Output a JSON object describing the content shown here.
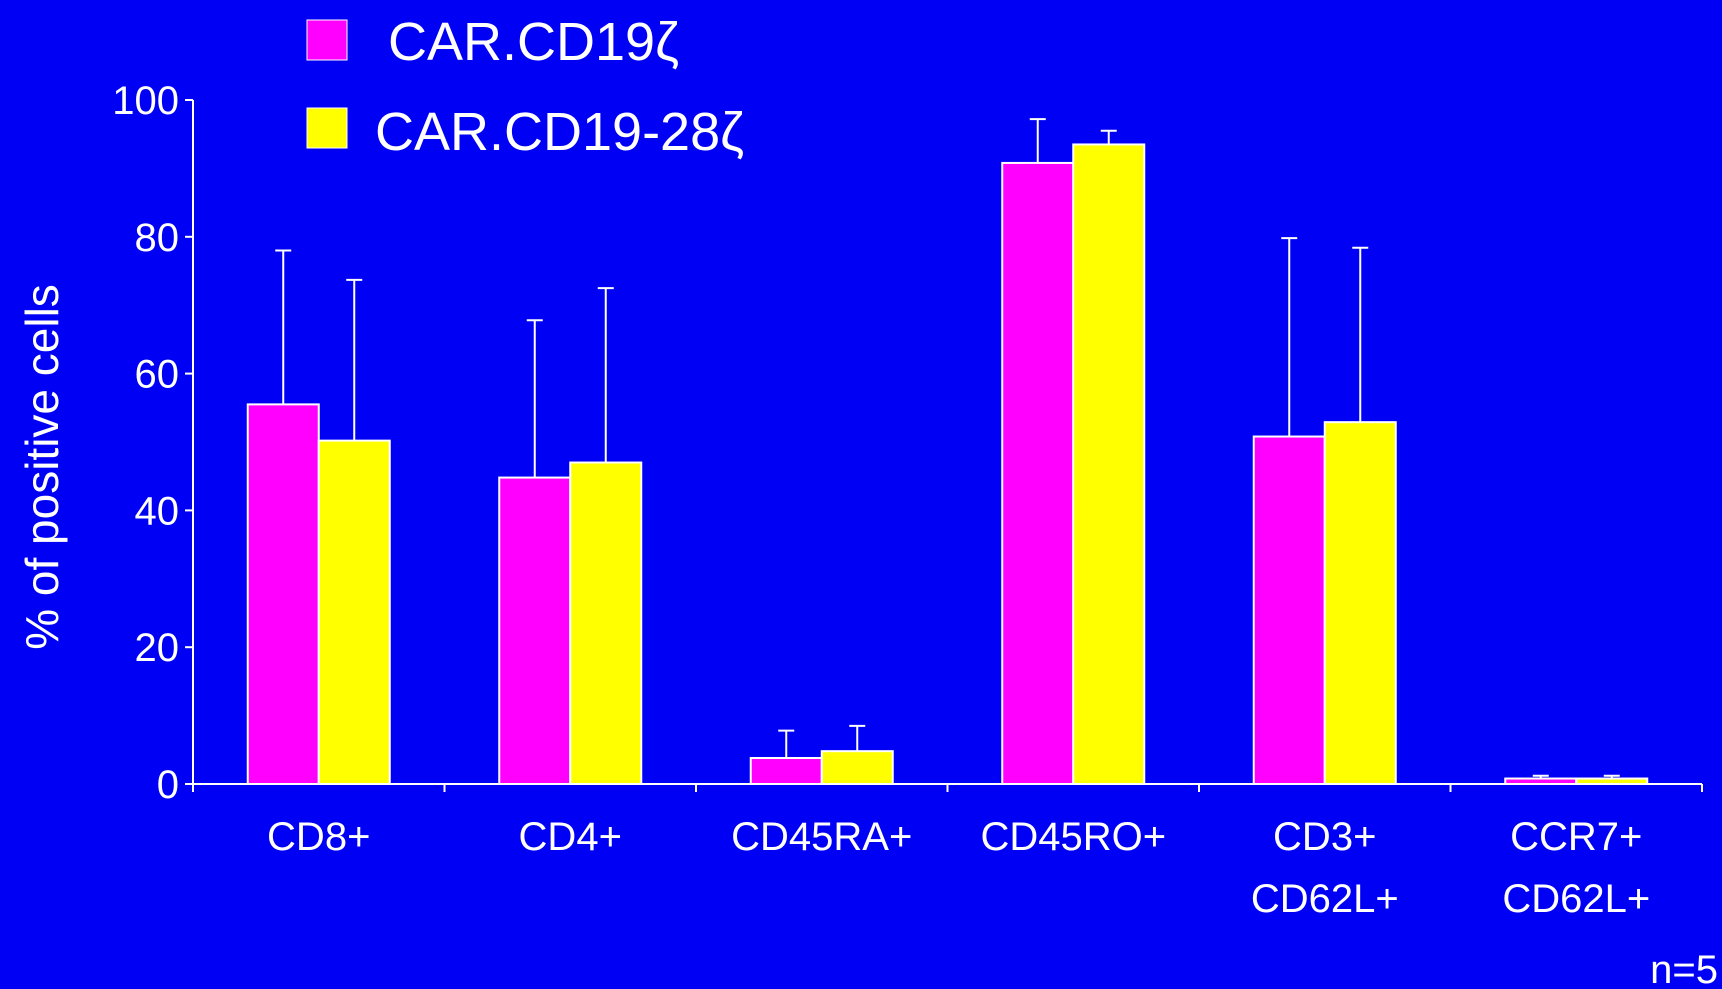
{
  "chart_data": {
    "type": "bar",
    "title": "",
    "xlabel": "",
    "ylabel": "% of positive cells",
    "ylim": [
      0,
      100
    ],
    "yticks": [
      "0",
      "20",
      "40",
      "60",
      "80",
      "100"
    ],
    "categories": [
      [
        "CD8+"
      ],
      [
        "CD4+"
      ],
      [
        "CD45RA+"
      ],
      [
        "CD45RO+"
      ],
      [
        "CD3+",
        "CD62L+"
      ],
      [
        "CCR7+",
        "CD62L+"
      ]
    ],
    "series": [
      {
        "name": "CAR.CD19ζ",
        "color": "#FF00FF",
        "values": [
          55.5,
          44.8,
          3.8,
          90.8,
          50.8,
          0.8
        ],
        "error": [
          22.5,
          23.0,
          4.0,
          6.4,
          29.0,
          0.4
        ]
      },
      {
        "name": "CAR.CD19-28ζ",
        "color": "#FFFF00",
        "values": [
          50.2,
          47.0,
          4.8,
          93.5,
          52.9,
          0.8
        ],
        "error": [
          23.5,
          25.5,
          3.7,
          2.0,
          25.5,
          0.4
        ]
      }
    ],
    "legend_position": "top-left",
    "grid": false,
    "note": "n=5",
    "background": "#0000F5"
  }
}
